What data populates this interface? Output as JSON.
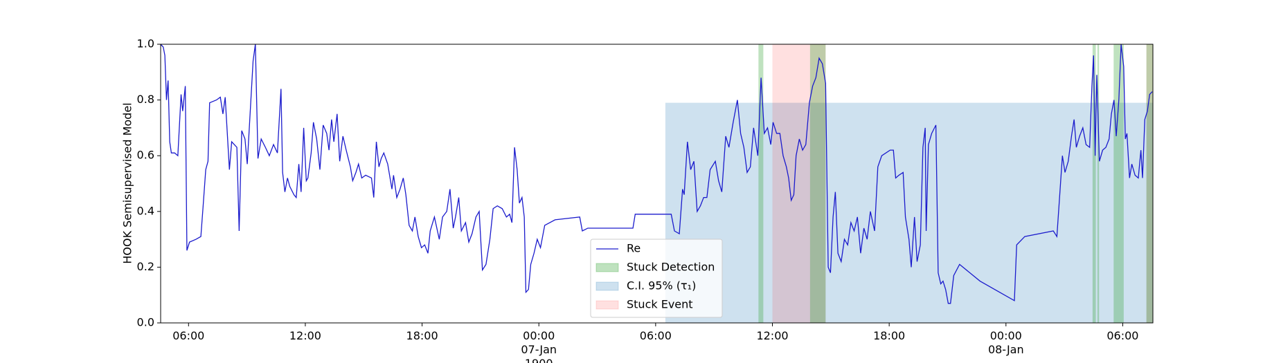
{
  "chart_data": {
    "type": "line",
    "ylabel": "HOOK Semisupervised Model",
    "xlim": [
      "1900-01-06T04:34",
      "1900-01-08T07:33"
    ],
    "ylim": [
      0,
      1
    ],
    "yticks": [
      {
        "value": 0,
        "label": "0.0"
      },
      {
        "value": 0.2,
        "label": "0.2"
      },
      {
        "value": 0.4,
        "label": "0.4"
      },
      {
        "value": 0.6,
        "label": "0.6"
      },
      {
        "value": 0.8,
        "label": "0.8"
      },
      {
        "value": 1,
        "label": "1.0"
      }
    ],
    "xticks": [
      {
        "value": "1900-01-06T06:00",
        "label": "06:00"
      },
      {
        "value": "1900-01-06T12:00",
        "label": "12:00"
      },
      {
        "value": "1900-01-06T18:00",
        "label": "18:00"
      },
      {
        "value": "1900-01-07T00:00",
        "label": "00:00\n07-Jan\n1900"
      },
      {
        "value": "1900-01-07T06:00",
        "label": "06:00"
      },
      {
        "value": "1900-01-07T12:00",
        "label": "12:00"
      },
      {
        "value": "1900-01-07T18:00",
        "label": "18:00"
      },
      {
        "value": "1900-01-08T00:00",
        "label": "00:00\n08-Jan"
      },
      {
        "value": "1900-01-08T06:00",
        "label": "06:00"
      }
    ],
    "legend": "lower center",
    "x": [
      "1900-01-06T04:34",
      "1900-01-06T04:42",
      "1900-01-06T04:47",
      "1900-01-06T04:52",
      "1900-01-06T04:57",
      "1900-01-06T05:02",
      "1900-01-06T05:07",
      "1900-01-06T05:17",
      "1900-01-06T05:27",
      "1900-01-06T05:37",
      "1900-01-06T05:42",
      "1900-01-06T05:50",
      "1900-01-06T05:55",
      "1900-01-06T06:03",
      "1900-01-06T06:23",
      "1900-01-06T06:38",
      "1900-01-06T06:45",
      "1900-01-06T06:53",
      "1900-01-06T07:00",
      "1900-01-06T07:05",
      "1900-01-06T07:26",
      "1900-01-06T07:38",
      "1900-01-06T07:46",
      "1900-01-06T07:53",
      "1900-01-06T08:06",
      "1900-01-06T08:13",
      "1900-01-06T08:29",
      "1900-01-06T08:36",
      "1900-01-06T08:44",
      "1900-01-06T08:54",
      "1900-01-06T09:01",
      "1900-01-06T09:19",
      "1900-01-06T09:26",
      "1900-01-06T09:34",
      "1900-01-06T09:44",
      "1900-01-06T09:57",
      "1900-01-06T10:09",
      "1900-01-06T10:22",
      "1900-01-06T10:34",
      "1900-01-06T10:45",
      "1900-01-06T10:50",
      "1900-01-06T10:57",
      "1900-01-06T11:05",
      "1900-01-06T11:12",
      "1900-01-06T11:25",
      "1900-01-06T11:32",
      "1900-01-06T11:40",
      "1900-01-06T11:47",
      "1900-01-06T11:55",
      "1900-01-06T12:03",
      "1900-01-06T12:08",
      "1900-01-06T12:18",
      "1900-01-06T12:25",
      "1900-01-06T12:35",
      "1900-01-06T12:45",
      "1900-01-06T12:55",
      "1900-01-06T13:06",
      "1900-01-06T13:13",
      "1900-01-06T13:21",
      "1900-01-06T13:28",
      "1900-01-06T13:38",
      "1900-01-06T13:46",
      "1900-01-06T13:56",
      "1900-01-06T14:06",
      "1900-01-06T14:19",
      "1900-01-06T14:26",
      "1900-01-06T14:36",
      "1900-01-06T14:44",
      "1900-01-06T14:54",
      "1900-01-06T15:06",
      "1900-01-06T15:24",
      "1900-01-06T15:31",
      "1900-01-06T15:39",
      "1900-01-06T15:47",
      "1900-01-06T15:54",
      "1900-01-06T16:02",
      "1900-01-06T16:14",
      "1900-01-06T16:27",
      "1900-01-06T16:32",
      "1900-01-06T16:42",
      "1900-01-06T16:52",
      "1900-01-06T17:02",
      "1900-01-06T17:10",
      "1900-01-06T17:20",
      "1900-01-06T17:30",
      "1900-01-06T17:38",
      "1900-01-06T17:48",
      "1900-01-06T17:58",
      "1900-01-06T18:08",
      "1900-01-06T18:18",
      "1900-01-06T18:25",
      "1900-01-06T18:38",
      "1900-01-06T18:53",
      "1900-01-06T19:03",
      "1900-01-06T19:16",
      "1900-01-06T19:26",
      "1900-01-06T19:36",
      "1900-01-06T19:43",
      "1900-01-06T19:53",
      "1900-01-06T20:01",
      "1900-01-06T20:14",
      "1900-01-06T20:24",
      "1900-01-06T20:34",
      "1900-01-06T20:46",
      "1900-01-06T20:56",
      "1900-01-06T21:06",
      "1900-01-06T21:17",
      "1900-01-06T21:29",
      "1900-01-06T21:39",
      "1900-01-06T21:52",
      "1900-01-06T22:07",
      "1900-01-06T22:20",
      "1900-01-06T22:30",
      "1900-01-06T22:37",
      "1900-01-06T22:45",
      "1900-01-06T22:53",
      "1900-01-06T23:00",
      "1900-01-06T23:08",
      "1900-01-06T23:15",
      "1900-01-06T23:20",
      "1900-01-06T23:28",
      "1900-01-06T23:35",
      "1900-01-06T23:45",
      "1900-01-06T23:55",
      "1900-01-07T00:05",
      "1900-01-07T00:18",
      "1900-01-07T00:50",
      "1900-01-07T02:06",
      "1900-01-07T02:14",
      "1900-01-07T02:31",
      "1900-01-07T04:50",
      "1900-01-07T04:57",
      "1900-01-07T06:48",
      "1900-01-07T06:58",
      "1900-01-07T07:13",
      "1900-01-07T07:23",
      "1900-01-07T07:28",
      "1900-01-07T07:38",
      "1900-01-07T07:48",
      "1900-01-07T07:58",
      "1900-01-07T08:08",
      "1900-01-07T08:18",
      "1900-01-07T08:28",
      "1900-01-07T08:38",
      "1900-01-07T08:48",
      "1900-01-07T09:04",
      "1900-01-07T09:14",
      "1900-01-07T09:24",
      "1900-01-07T09:36",
      "1900-01-07T09:46",
      "1900-01-07T09:59",
      "1900-01-07T10:12",
      "1900-01-07T10:22",
      "1900-01-07T10:32",
      "1900-01-07T10:42",
      "1900-01-07T10:52",
      "1900-01-07T11:02",
      "1900-01-07T11:15",
      "1900-01-07T11:25",
      "1900-01-07T11:35",
      "1900-01-07T11:45",
      "1900-01-07T11:55",
      "1900-01-07T12:02",
      "1900-01-07T12:13",
      "1900-01-07T12:23",
      "1900-01-07T12:33",
      "1900-01-07T12:43",
      "1900-01-07T12:50",
      "1900-01-07T12:58",
      "1900-01-07T13:06",
      "1900-01-07T13:13",
      "1900-01-07T13:23",
      "1900-01-07T13:33",
      "1900-01-07T13:43",
      "1900-01-07T13:54",
      "1900-01-07T14:04",
      "1900-01-07T14:14",
      "1900-01-07T14:24",
      "1900-01-07T14:34",
      "1900-01-07T14:44",
      "1900-01-07T14:52",
      "1900-01-07T14:59",
      "1900-01-07T15:07",
      "1900-01-07T15:14",
      "1900-01-07T15:22",
      "1900-01-07T15:32",
      "1900-01-07T15:42",
      "1900-01-07T15:52",
      "1900-01-07T16:02",
      "1900-01-07T16:12",
      "1900-01-07T16:22",
      "1900-01-07T16:32",
      "1900-01-07T16:42",
      "1900-01-07T16:52",
      "1900-01-07T17:02",
      "1900-01-07T17:15",
      "1900-01-07T17:25",
      "1900-01-07T17:37",
      "1900-01-07T18:03",
      "1900-01-07T18:13",
      "1900-01-07T18:20",
      "1900-01-07T18:30",
      "1900-01-07T18:43",
      "1900-01-07T18:50",
      "1900-01-07T19:01",
      "1900-01-07T19:08",
      "1900-01-07T19:18",
      "1900-01-07T19:26",
      "1900-01-07T19:36",
      "1900-01-07T19:44",
      "1900-01-07T19:51",
      "1900-01-07T19:54",
      "1900-01-07T20:01",
      "1900-01-07T20:11",
      "1900-01-07T20:24",
      "1900-01-07T20:31",
      "1900-01-07T20:39",
      "1900-01-07T20:46",
      "1900-01-07T20:54",
      "1900-01-07T21:02",
      "1900-01-07T21:09",
      "1900-01-07T21:19",
      "1900-01-07T21:37",
      "1900-01-07T22:40",
      "1900-01-08T00:26",
      "1900-01-08T00:33",
      "1900-01-08T00:58",
      "1900-01-08T02:26",
      "1900-01-08T02:37",
      "1900-01-08T02:47",
      "1900-01-08T02:54",
      "1900-01-08T03:02",
      "1900-01-08T03:12",
      "1900-01-08T03:22",
      "1900-01-08T03:30",
      "1900-01-08T03:37",
      "1900-01-08T03:47",
      "1900-01-08T03:57",
      "1900-01-08T04:07",
      "1900-01-08T04:18",
      "1900-01-08T04:25",
      "1900-01-08T04:30",
      "1900-01-08T04:35",
      "1900-01-08T04:40",
      "1900-01-08T04:48",
      "1900-01-08T04:58",
      "1900-01-08T05:08",
      "1900-01-08T05:18",
      "1900-01-08T05:25",
      "1900-01-08T05:33",
      "1900-01-08T05:40",
      "1900-01-08T05:48",
      "1900-01-08T05:55",
      "1900-01-08T06:03",
      "1900-01-08T06:08",
      "1900-01-08T06:13",
      "1900-01-08T06:21",
      "1900-01-08T06:28",
      "1900-01-08T06:38",
      "1900-01-08T06:48",
      "1900-01-08T06:56",
      "1900-01-08T07:01",
      "1900-01-08T07:08",
      "1900-01-08T07:16",
      "1900-01-08T07:23",
      "1900-01-08T07:31"
    ],
    "series": [
      {
        "name": "Re",
        "color": "#1a1acc",
        "values": [
          1.0,
          0.99,
          0.96,
          0.8,
          0.87,
          0.65,
          0.61,
          0.61,
          0.6,
          0.82,
          0.76,
          0.85,
          0.26,
          0.29,
          0.3,
          0.31,
          0.42,
          0.55,
          0.58,
          0.79,
          0.8,
          0.81,
          0.75,
          0.81,
          0.55,
          0.65,
          0.63,
          0.33,
          0.69,
          0.66,
          0.57,
          0.94,
          1.0,
          0.59,
          0.66,
          0.63,
          0.6,
          0.64,
          0.61,
          0.84,
          0.54,
          0.47,
          0.52,
          0.49,
          0.46,
          0.45,
          0.57,
          0.47,
          0.7,
          0.51,
          0.52,
          0.61,
          0.72,
          0.66,
          0.55,
          0.71,
          0.68,
          0.62,
          0.73,
          0.65,
          0.75,
          0.58,
          0.67,
          0.62,
          0.56,
          0.51,
          0.54,
          0.57,
          0.52,
          0.53,
          0.52,
          0.45,
          0.65,
          0.56,
          0.59,
          0.61,
          0.57,
          0.48,
          0.53,
          0.45,
          0.48,
          0.52,
          0.46,
          0.35,
          0.33,
          0.38,
          0.31,
          0.27,
          0.28,
          0.25,
          0.33,
          0.38,
          0.3,
          0.38,
          0.4,
          0.48,
          0.34,
          0.38,
          0.45,
          0.33,
          0.36,
          0.29,
          0.32,
          0.38,
          0.4,
          0.19,
          0.21,
          0.3,
          0.41,
          0.42,
          0.41,
          0.38,
          0.39,
          0.36,
          0.63,
          0.55,
          0.43,
          0.45,
          0.38,
          0.11,
          0.12,
          0.21,
          0.25,
          0.3,
          0.27,
          0.35,
          0.37,
          0.38,
          0.33,
          0.34,
          0.34,
          0.39,
          0.39,
          0.33,
          0.32,
          0.48,
          0.46,
          0.65,
          0.55,
          0.58,
          0.4,
          0.42,
          0.45,
          0.45,
          0.55,
          0.58,
          0.51,
          0.47,
          0.67,
          0.63,
          0.72,
          0.8,
          0.68,
          0.63,
          0.54,
          0.56,
          0.7,
          0.6,
          0.88,
          0.68,
          0.7,
          0.64,
          0.72,
          0.68,
          0.68,
          0.6,
          0.56,
          0.52,
          0.44,
          0.46,
          0.6,
          0.66,
          0.62,
          0.64,
          0.79,
          0.85,
          0.88,
          0.95,
          0.93,
          0.86,
          0.2,
          0.18,
          0.38,
          0.47,
          0.25,
          0.22,
          0.3,
          0.28,
          0.36,
          0.33,
          0.38,
          0.25,
          0.34,
          0.3,
          0.4,
          0.33,
          0.56,
          0.6,
          0.62,
          0.62,
          0.52,
          0.53,
          0.54,
          0.38,
          0.3,
          0.2,
          0.38,
          0.22,
          0.28,
          0.63,
          0.7,
          0.33,
          0.64,
          0.68,
          0.71,
          0.18,
          0.14,
          0.15,
          0.12,
          0.07,
          0.07,
          0.17,
          0.21,
          0.15,
          0.08,
          0.28,
          0.31,
          0.33,
          0.31,
          0.48,
          0.6,
          0.54,
          0.58,
          0.67,
          0.73,
          0.63,
          0.67,
          0.7,
          0.64,
          0.63,
          0.85,
          0.96,
          0.6,
          0.89,
          0.58,
          0.62,
          0.63,
          0.66,
          0.75,
          0.8,
          0.67,
          0.8,
          1.0,
          0.92,
          0.66,
          0.68,
          0.52,
          0.57,
          0.53,
          0.52,
          0.62,
          0.52,
          0.73,
          0.76,
          0.82,
          0.83
        ]
      }
    ],
    "regions": [
      {
        "name": "Stuck Detection",
        "color": "#2ca02c",
        "spans": [
          [
            "1900-01-07T11:17",
            "1900-01-07T11:32"
          ],
          [
            "1900-01-07T13:56",
            "1900-01-07T14:44"
          ],
          [
            "1900-01-08T04:27",
            "1900-01-08T04:37"
          ],
          [
            "1900-01-08T04:42",
            "1900-01-08T04:47"
          ],
          [
            "1900-01-08T05:32",
            "1900-01-08T06:03"
          ],
          [
            "1900-01-08T07:13",
            "1900-01-08T07:33"
          ]
        ]
      },
      {
        "name": "C.I. 95% (τ₁)",
        "color": "#1f77b4",
        "upper": 0.79,
        "spans": [
          [
            "1900-01-07T06:30",
            "1900-01-08T07:33"
          ]
        ]
      },
      {
        "name": "Stuck Event",
        "color": "#ff0000",
        "spans": [
          [
            "1900-01-07T12:00",
            "1900-01-07T14:44"
          ],
          [
            "1900-01-08T07:13",
            "1900-01-08T07:33"
          ]
        ]
      }
    ]
  }
}
